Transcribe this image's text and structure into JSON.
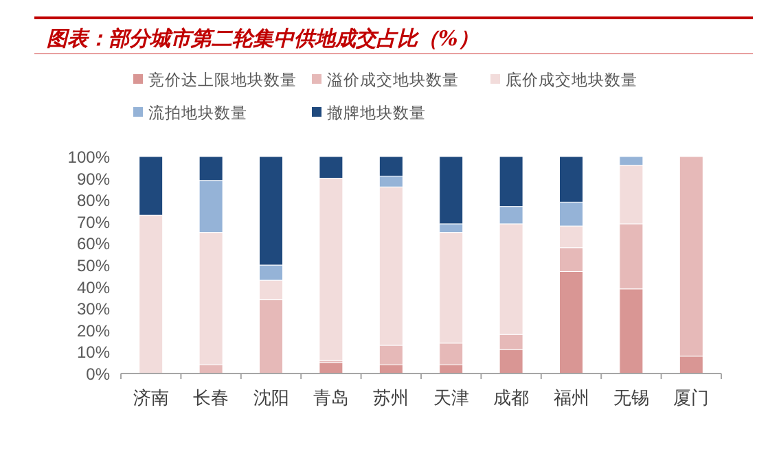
{
  "chart_data": {
    "type": "bar",
    "stacked": true,
    "title": "图表：部分城市第二轮集中供地成交占比（%）",
    "categories": [
      "济南",
      "长春",
      "沈阳",
      "青岛",
      "苏州",
      "天津",
      "成都",
      "福州",
      "无锡",
      "厦门"
    ],
    "series": [
      {
        "name": "竞价达上限地块数量",
        "color": "#d99694",
        "values": [
          0,
          0,
          0,
          5,
          4,
          4,
          11,
          47,
          39,
          8
        ]
      },
      {
        "name": "溢价成交地块数量",
        "color": "#e6b9b8",
        "values": [
          0,
          4,
          34,
          1,
          9,
          10,
          7,
          11,
          30,
          92
        ]
      },
      {
        "name": "底价成交地块数量",
        "color": "#f2dcdb",
        "values": [
          73,
          61,
          9,
          84,
          73,
          51,
          51,
          10,
          27,
          0
        ]
      },
      {
        "name": "流拍地块数量",
        "color": "#95b3d7",
        "values": [
          0,
          24,
          7,
          0,
          5,
          4,
          8,
          11,
          4,
          0
        ]
      },
      {
        "name": "撤牌地块数量",
        "color": "#1f497d",
        "values": [
          27,
          11,
          50,
          10,
          9,
          31,
          23,
          21,
          0,
          0
        ]
      }
    ],
    "ylim": [
      0,
      100
    ],
    "yticks": [
      {
        "value": 0,
        "label": "0%"
      },
      {
        "value": 10,
        "label": "10%"
      },
      {
        "value": 20,
        "label": "20%"
      },
      {
        "value": 30,
        "label": "30%"
      },
      {
        "value": 40,
        "label": "40%"
      },
      {
        "value": 50,
        "label": "50%"
      },
      {
        "value": 60,
        "label": "60%"
      },
      {
        "value": 70,
        "label": "70%"
      },
      {
        "value": 80,
        "label": "80%"
      },
      {
        "value": 90,
        "label": "90%"
      },
      {
        "value": 100,
        "label": "100%"
      }
    ],
    "legend": "top"
  }
}
